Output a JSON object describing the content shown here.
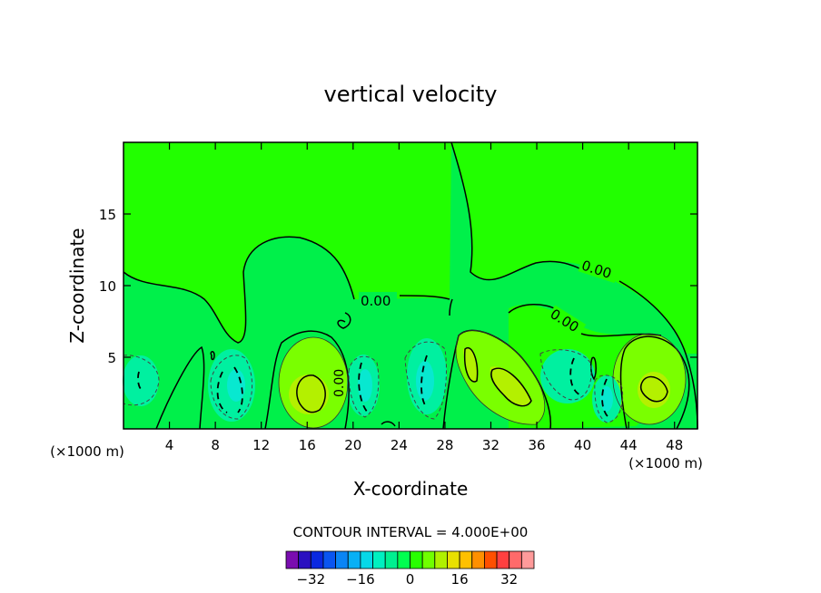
{
  "chart_data": {
    "type": "contour",
    "title": "vertical velocity",
    "xlabel": "X-coordinate",
    "ylabel": "Z-coordinate",
    "xunit_label_left": "(×1000 m)",
    "xunit_label_right": "(×1000 m)",
    "xlim": [
      0,
      50
    ],
    "ylim": [
      0,
      20
    ],
    "xticks": [
      4,
      8,
      12,
      16,
      20,
      24,
      28,
      32,
      36,
      40,
      44,
      48
    ],
    "yticks": [
      5,
      10,
      15
    ],
    "contour_interval_text": "CONTOUR INTERVAL = 4.000E+00",
    "contour_labels": [
      "0.00",
      "0.00",
      "0.00",
      "0.00"
    ],
    "colorbar": {
      "tick_labels": [
        "-32",
        "-16",
        "0",
        "16",
        "32"
      ],
      "colors": [
        "#7a0db0",
        "#2a10c0",
        "#0a28e0",
        "#0a55f0",
        "#0a85f5",
        "#08b0f5",
        "#06d8e8",
        "#00f0c0",
        "#00f090",
        "#00ff50",
        "#28ff00",
        "#70ff00",
        "#b0f000",
        "#e8e000",
        "#ffc000",
        "#ff9000",
        "#ff5000",
        "#ff4040",
        "#ff6a6a",
        "#ff9a9a"
      ]
    },
    "regions": {
      "background_green": "#22ff00",
      "lower_green": "#00f04a",
      "positive_mid": "#7aff00",
      "positive_core": "#b4f000",
      "negative_mid": "#00f0a0",
      "negative_core": "#08e8d0"
    }
  }
}
